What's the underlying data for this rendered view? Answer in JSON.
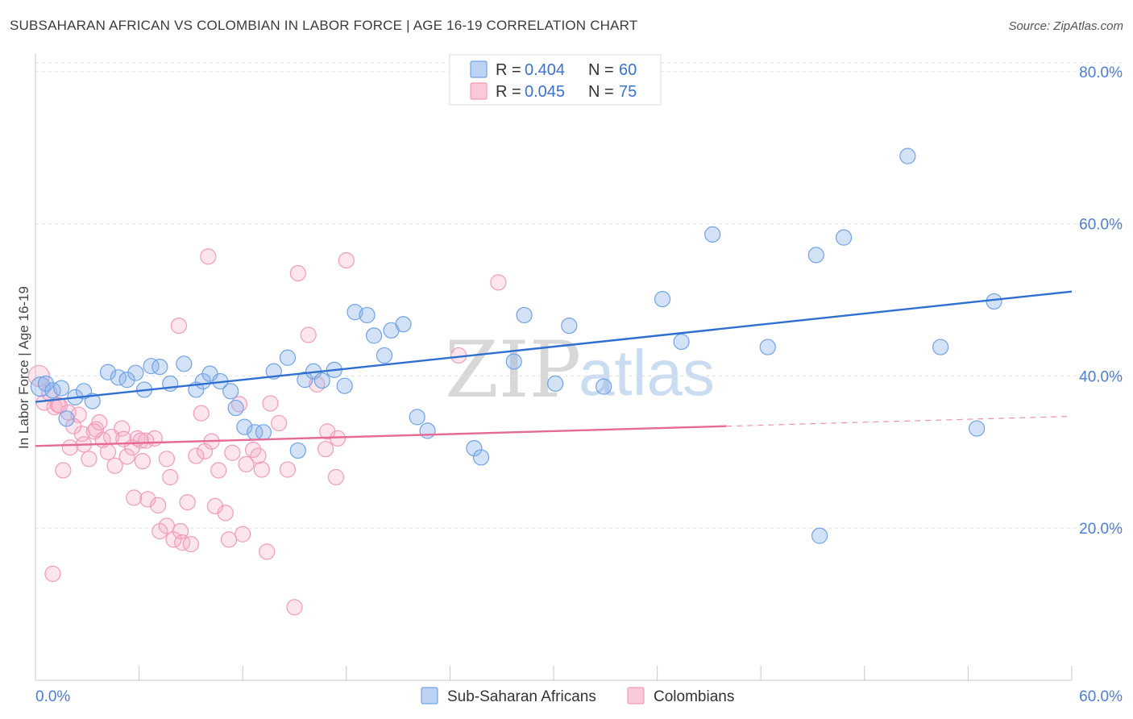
{
  "header": {
    "title": "SUBSAHARAN AFRICAN VS COLOMBIAN IN LABOR FORCE | AGE 16-19 CORRELATION CHART",
    "source": "Source: ZipAtlas.com"
  },
  "watermark": {
    "zip": "ZIP",
    "atlas": "atlas"
  },
  "legend": {
    "r_label": "R =",
    "n_label": "N =",
    "items": [
      {
        "r": "0.404",
        "n": "60",
        "color": "#6fa3e6"
      },
      {
        "r": "0.045",
        "n": "75",
        "color": "#f29bb8"
      }
    ]
  },
  "bottom_legend": [
    "Sub-Saharan Africans",
    "Colombians"
  ],
  "chart_data": {
    "type": "scatter",
    "title": "SUBSAHARAN AFRICAN VS COLOMBIAN IN LABOR FORCE | AGE 16-19 CORRELATION CHART",
    "xlabel": "",
    "ylabel": "In Labor Force | Age 16-19",
    "xlim": [
      0,
      60
    ],
    "ylim": [
      0,
      82
    ],
    "x_tick_labels": [
      "0.0%",
      "60.0%"
    ],
    "y_ticks": [
      20,
      40,
      60,
      80
    ],
    "y_tick_labels": [
      "20.0%",
      "40.0%",
      "60.0%",
      "80.0%"
    ],
    "grid": true,
    "legend_position": "top-center",
    "series": [
      {
        "name": "Sub-Saharan Africans",
        "color": "#6fa3e6",
        "line_color": "#2f6fd0",
        "r": 0.404,
        "n": 60,
        "trend": {
          "x": [
            0,
            60
          ],
          "y": [
            36.6,
            51.1
          ]
        },
        "x": [
          0.3,
          0.6,
          1.0,
          1.5,
          1.8,
          2.3,
          2.8,
          3.3,
          4.2,
          4.8,
          5.3,
          5.8,
          6.3,
          6.7,
          7.2,
          7.8,
          8.6,
          9.3,
          9.7,
          10.1,
          10.7,
          11.3,
          11.6,
          12.1,
          12.7,
          13.2,
          13.8,
          14.6,
          15.2,
          15.6,
          16.1,
          16.6,
          17.3,
          17.9,
          18.5,
          19.2,
          19.6,
          20.2,
          20.6,
          21.3,
          22.1,
          22.7,
          25.4,
          25.8,
          27.7,
          28.3,
          30.1,
          30.9,
          32.9,
          36.3,
          37.4,
          39.2,
          42.4,
          45.2,
          46.8,
          50.5,
          52.4,
          55.5,
          54.5,
          45.4
        ],
        "y": [
          38.6,
          39.0,
          38.1,
          38.4,
          34.4,
          37.2,
          38.0,
          36.7,
          40.5,
          39.8,
          39.5,
          40.4,
          38.2,
          41.3,
          41.2,
          39.0,
          41.6,
          38.2,
          39.3,
          40.3,
          39.3,
          38.0,
          35.8,
          33.3,
          32.6,
          32.6,
          40.6,
          42.4,
          30.2,
          39.5,
          40.6,
          39.4,
          40.8,
          38.7,
          48.4,
          48.0,
          45.3,
          42.7,
          46.0,
          46.8,
          34.6,
          32.8,
          30.5,
          29.3,
          41.9,
          48.0,
          39.0,
          46.6,
          38.6,
          50.1,
          44.5,
          58.6,
          43.8,
          55.9,
          58.2,
          68.9,
          43.8,
          49.8,
          33.1,
          19.0
        ]
      },
      {
        "name": "Colombians",
        "color": "#f29bb8",
        "line_color": "#e56b95",
        "r": 0.045,
        "n": 75,
        "trend": {
          "x": [
            0,
            40
          ],
          "y": [
            30.8,
            33.4
          ]
        },
        "trend_dashed": {
          "x": [
            40,
            60
          ],
          "y": [
            33.4,
            34.7
          ]
        },
        "x": [
          0.2,
          0.5,
          0.8,
          1.1,
          1.3,
          1.6,
          1.9,
          2.2,
          2.5,
          2.8,
          3.1,
          3.5,
          3.9,
          4.2,
          4.6,
          5.0,
          5.3,
          5.6,
          5.9,
          6.2,
          6.5,
          6.9,
          7.2,
          7.6,
          8.0,
          8.4,
          8.8,
          9.3,
          9.8,
          10.2,
          10.6,
          11.0,
          11.4,
          11.8,
          12.2,
          12.6,
          13.1,
          13.6,
          14.1,
          14.6,
          15.2,
          15.8,
          16.3,
          16.9,
          17.4,
          18.0,
          1.4,
          2.0,
          2.7,
          3.7,
          4.4,
          5.1,
          5.7,
          6.4,
          7.1,
          7.8,
          8.5,
          9.0,
          9.6,
          10.4,
          11.2,
          12.0,
          12.9,
          13.4,
          15.0,
          16.8,
          17.5,
          24.5,
          26.8,
          1.0,
          3.4,
          6.1,
          7.6,
          8.3,
          10.0
        ],
        "y": [
          40.0,
          36.5,
          37.8,
          35.9,
          36.2,
          27.6,
          35.2,
          33.4,
          34.9,
          31.0,
          29.1,
          33.0,
          31.6,
          30.0,
          28.2,
          33.1,
          29.4,
          30.6,
          31.8,
          28.8,
          23.8,
          31.8,
          19.6,
          20.3,
          18.5,
          19.6,
          23.4,
          29.5,
          30.1,
          31.4,
          27.6,
          22.0,
          29.9,
          36.3,
          28.4,
          30.3,
          27.7,
          36.4,
          33.8,
          27.7,
          53.5,
          45.4,
          38.9,
          32.7,
          26.7,
          55.2,
          36.1,
          30.6,
          32.4,
          33.9,
          32.0,
          31.7,
          24.0,
          31.5,
          23.0,
          26.7,
          18.1,
          17.9,
          35.1,
          22.9,
          18.5,
          19.2,
          29.5,
          16.9,
          9.6,
          30.4,
          31.8,
          42.7,
          52.3,
          14.0,
          32.7,
          31.5,
          29.1,
          46.6,
          55.7
        ]
      }
    ]
  }
}
